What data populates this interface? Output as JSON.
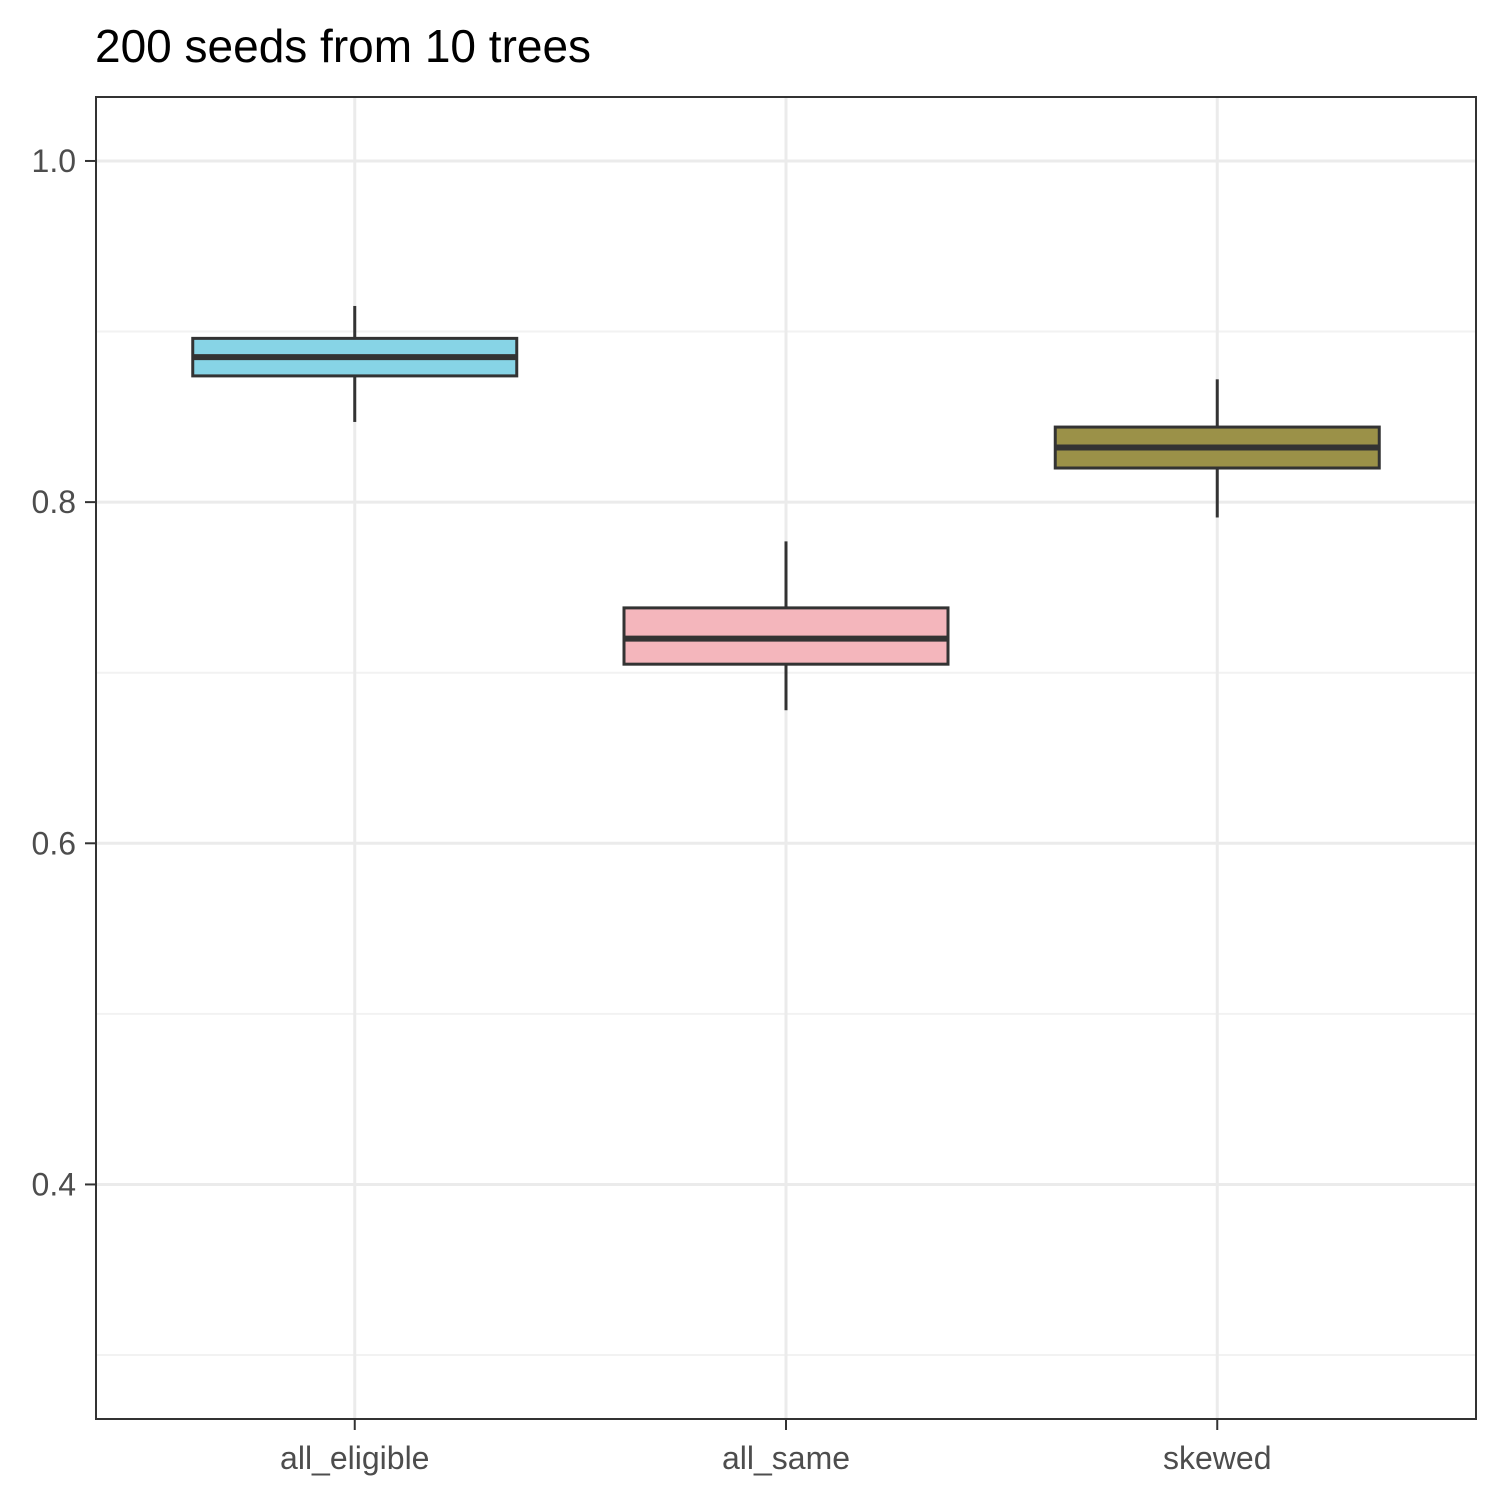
{
  "chart_data": {
    "type": "boxplot",
    "title": "200 seeds from 10 trees",
    "xlabel": "",
    "ylabel": "",
    "categories": [
      "all_eligible",
      "all_same",
      "skewed"
    ],
    "boxes": [
      {
        "category": "all_eligible",
        "fill": "#87D4E6",
        "whisker_low": 0.847,
        "q1": 0.874,
        "median": 0.885,
        "q3": 0.896,
        "whisker_high": 0.915
      },
      {
        "category": "all_same",
        "fill": "#F4B6BC",
        "whisker_low": 0.678,
        "q1": 0.705,
        "median": 0.72,
        "q3": 0.738,
        "whisker_high": 0.777
      },
      {
        "category": "skewed",
        "fill": "#9B9148",
        "whisker_low": 0.791,
        "q1": 0.82,
        "median": 0.832,
        "q3": 0.844,
        "whisker_high": 0.872
      }
    ],
    "y_ticks": [
      0.4,
      0.6,
      0.8,
      1.0
    ],
    "y_tick_labels": [
      "0.4",
      "0.6",
      "0.8",
      "1.0"
    ],
    "ylim": [
      0.2625,
      1.0375
    ],
    "grid": true,
    "legend": "none"
  },
  "colors": {
    "panel_border": "#333333",
    "grid_major": "#ebebeb",
    "grid_minor": "#f2f2f2",
    "box_outline": "#333333",
    "tick_text": "#4d4d4d",
    "title": "#000000"
  }
}
